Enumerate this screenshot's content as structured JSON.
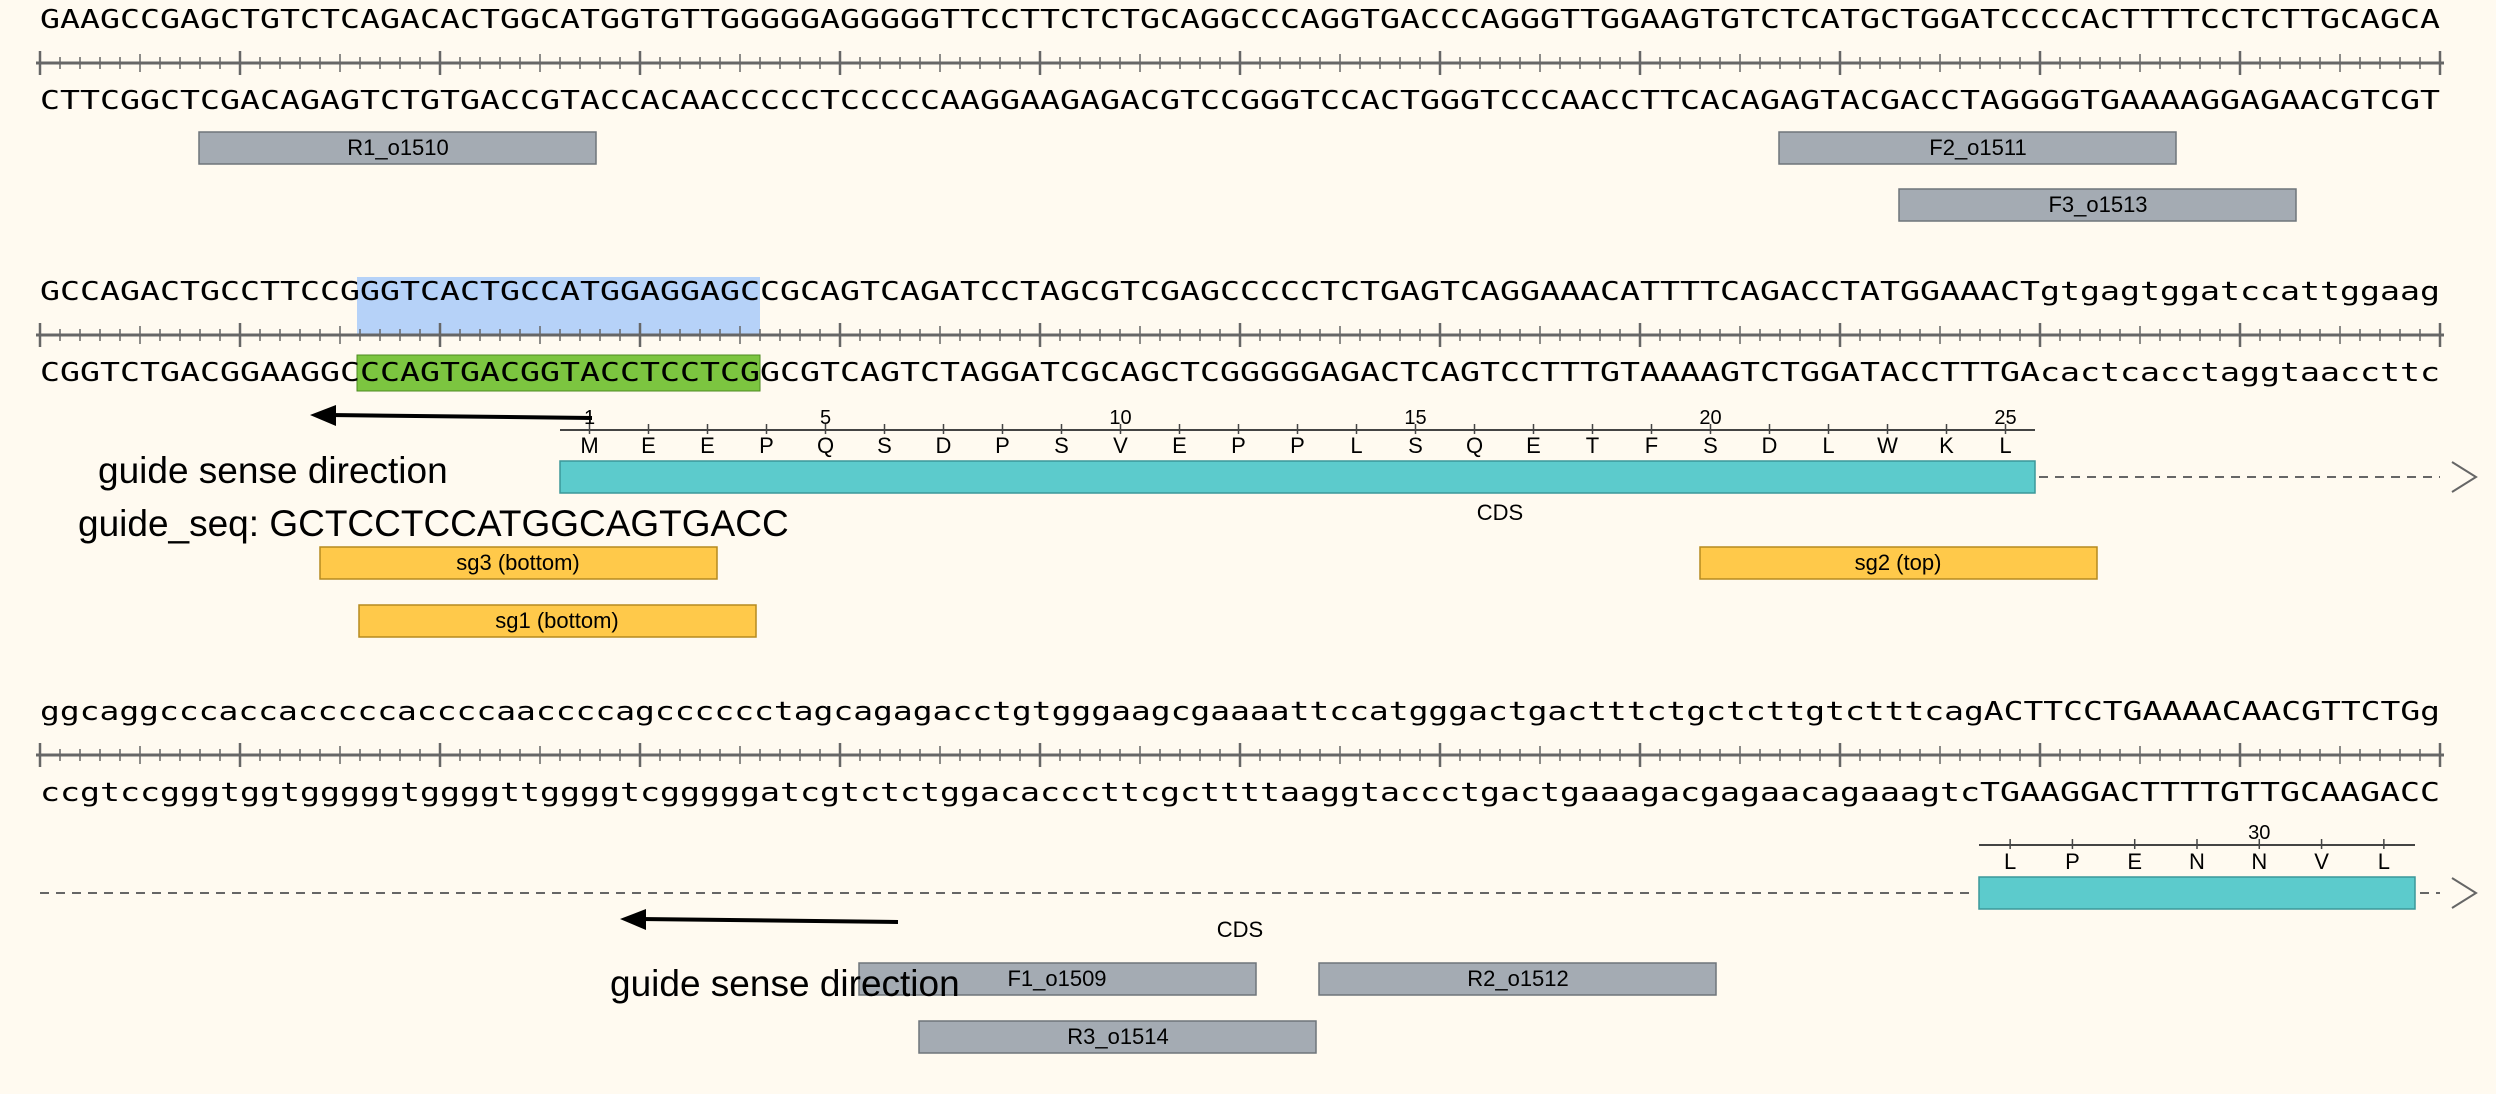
{
  "rows": [
    {
      "top": "GAAGCCGAGCTGTCTCAGACACTGGCATGGTGTTGGGGGAGGGGGTTCCTTCTCTGCAGGCCCAGGTGACCCAGGGTTGGAAGTGTCTCATGCTGGATCCCCACTTTTCCTCTTGCAGCA",
      "bottom": "CTTCGGCTCGACAGAGTCTGTGACCGTACCACAACCCCCTCCCCCAAGGAAGAGACGTCCGGGTCCACTGGGTCCCAACCTTCACAGAGTACGACCTAGGGGTGAAAAGGAGAACGTCGT"
    },
    {
      "top": "GCCAGACTGCCTTCCGGGTCACTGCCATGGAGGAGCCGCAGTCAGATCCTAGCGTCGAGCCCCCTCTGAGTCAGGAAACATTTTCAGACCTATGGAAACTgtgagtggatccattggaag",
      "bottom": "CGGTCTGACGGAAGGCCCAGTGACGGTACCTCCTCGGCGTCAGTCTAGGATCGCAGCTCGGGGGAGACTCAGTCCTTTGTAAAAGTCTGGATACCTTTGAcactcacctaggtaaccttc"
    },
    {
      "top": "ggcaggcccaccacccccaccccaaccccagcccccctagcagagacctgtgggaagcgaaaattccatgggactgactttctgctcttgtctttcagACTTCCTGAAAACAACGTTCTGg",
      "bottom": "ccgtccgggtggtgggggtggggttggggtcgggggatcgtctctggacacccttcgcttttaaggtaccctgactgaaagacgagaacagaaagtcTGAAGGACTTTTGTTGCAAGACC"
    }
  ],
  "primers": {
    "r1": "R1_o1510",
    "f2": "F2_o1511",
    "f3": "F3_o1513",
    "f1": "F1_o1509",
    "r2": "R2_o1512",
    "r3": "R3_o1514"
  },
  "guides": {
    "sg3": "sg3 (bottom)",
    "sg1": "sg1 (bottom)",
    "sg2": "sg2 (top)"
  },
  "cds_label": "CDS",
  "annotations": {
    "sense_label_1": "guide sense direction",
    "guide_seq": "guide_seq: GCTCCTCCATGGCAGTGACC",
    "sense_label_2": "guide sense direction"
  },
  "translation_1": {
    "residues": [
      "M",
      "E",
      "E",
      "P",
      "Q",
      "S",
      "D",
      "P",
      "S",
      "V",
      "E",
      "P",
      "P",
      "L",
      "S",
      "Q",
      "E",
      "T",
      "F",
      "S",
      "D",
      "L",
      "W",
      "K",
      "L"
    ],
    "ticks": [
      "1",
      "5",
      "10",
      "15",
      "20",
      "25"
    ]
  },
  "translation_2": {
    "residues": [
      "L",
      "P",
      "E",
      "N",
      "N",
      "V",
      "L"
    ],
    "ticks": [
      "30"
    ]
  },
  "colors": {
    "background": "#fffaf0",
    "primer": "#a4abb3",
    "guide": "#ffc94a",
    "cds": "#5ccbcc",
    "highlight_blue": "#b6d2f8",
    "highlight_green": "#7cc540"
  }
}
